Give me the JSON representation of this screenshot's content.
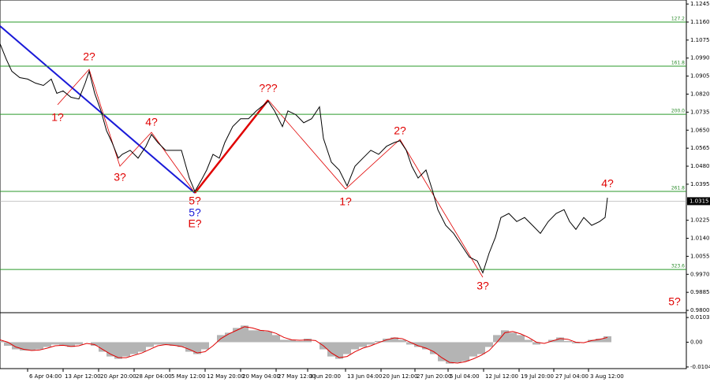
{
  "chart_data": [
    {
      "type": "line",
      "color": "#000000",
      "x": [
        0,
        8,
        15,
        25,
        35,
        45,
        55,
        65,
        72,
        80,
        90,
        100,
        108,
        113,
        120,
        128,
        135,
        142,
        150,
        155,
        165,
        175,
        185,
        192,
        200,
        210,
        220,
        230,
        240,
        247,
        255,
        262,
        270,
        278,
        285,
        295,
        305,
        315,
        325,
        340,
        348,
        358,
        365,
        375,
        385,
        395,
        405,
        410,
        420,
        430,
        440,
        450,
        460,
        470,
        480,
        490,
        500,
        507,
        515,
        522,
        530,
        540,
        548,
        555,
        565,
        575,
        585,
        595,
        605,
        612,
        620,
        628,
        635,
        645,
        655,
        665,
        675,
        685,
        695,
        705,
        715,
        722,
        730,
        740,
        750,
        760,
        767,
        770
      ],
      "values": [
        1.1058,
        1.0984,
        1.0928,
        1.0898,
        1.0891,
        1.0872,
        1.0861,
        1.0891,
        1.0824,
        1.0835,
        1.0805,
        1.0797,
        1.0872,
        1.0928,
        1.0824,
        1.0741,
        1.0648,
        1.0592,
        1.0518,
        1.0536,
        1.0555,
        1.0518,
        1.0574,
        1.063,
        1.0592,
        1.0555,
        1.0555,
        1.0555,
        1.0424,
        1.0361,
        1.0413,
        1.0462,
        1.0536,
        1.0518,
        1.0592,
        1.0667,
        1.0704,
        1.0704,
        1.0741,
        1.0786,
        1.0741,
        1.0667,
        1.0741,
        1.0723,
        1.0685,
        1.0704,
        1.076,
        1.0611,
        1.0499,
        1.0462,
        1.0387,
        1.048,
        1.0518,
        1.0555,
        1.0536,
        1.0574,
        1.0592,
        1.06,
        1.0555,
        1.048,
        1.0424,
        1.0462,
        1.0368,
        1.0275,
        1.0201,
        1.0163,
        1.0107,
        1.0051,
        1.0033,
        0.9977,
        1.007,
        1.0145,
        1.0238,
        1.0257,
        1.0219,
        1.0238,
        1.0201,
        1.0163,
        1.0219,
        1.0257,
        1.0275,
        1.0219,
        1.0182,
        1.0238,
        1.0201,
        1.0219,
        1.0238,
        1.0331
      ],
      "xlim": [
        0,
        870
      ],
      "ylim": [
        0.9789,
        1.1264
      ],
      "yticks": [
        1.1245,
        {
          "value": 1.116,
          "label": "1.1160"
        },
        1.1075,
        {
          "value": 1.099,
          "label": "1.0990"
        },
        1.0905,
        {
          "value": 1.082,
          "label": "1.0820"
        },
        1.0735,
        {
          "value": 1.065,
          "label": "1.0650"
        },
        1.0565,
        {
          "value": 1.048,
          "label": "1.0480"
        },
        1.0395,
        1.0225,
        {
          "value": 1.014,
          "label": "1.0140"
        },
        1.0055,
        {
          "value": 0.997,
          "label": "0.9970"
        },
        0.9885,
        {
          "value": 0.98,
          "label": "0.9800"
        }
      ],
      "current_price": 1.0315,
      "levels": [
        {
          "price": 1.116,
          "label": "127.2"
        },
        {
          "price": 1.0952,
          "label": "161.8"
        },
        {
          "price": 1.0725,
          "label": "200.0"
        },
        {
          "price": 1.0361,
          "label": "261.8"
        },
        {
          "price": 0.9993,
          "label": "323.6"
        }
      ],
      "level_color": "#2a9a2a",
      "annotations": [
        "2?",
        "1?",
        "4?",
        "3?",
        "5?",
        "5?",
        "E?",
        "???",
        "1?",
        "2?",
        "3?",
        "4?",
        "5?"
      ]
    },
    {
      "type": "bar",
      "color": "#b4b4b4",
      "signal_color": "#e00000",
      "x": [
        0,
        10,
        20,
        30,
        40,
        50,
        60,
        70,
        80,
        90,
        100,
        110,
        120,
        130,
        140,
        150,
        160,
        170,
        180,
        190,
        200,
        210,
        220,
        230,
        240,
        250,
        260,
        270,
        280,
        290,
        300,
        310,
        320,
        330,
        340,
        350,
        360,
        370,
        380,
        390,
        400,
        410,
        420,
        430,
        440,
        450,
        460,
        470,
        480,
        490,
        500,
        510,
        520,
        530,
        540,
        550,
        560,
        570,
        580,
        590,
        600,
        610,
        620,
        630,
        640,
        650,
        660,
        670,
        680,
        690,
        700,
        710,
        720,
        730,
        740,
        750,
        760,
        770
      ],
      "values": [
        0.0005,
        -0.0015,
        -0.003,
        -0.0035,
        -0.0035,
        -0.003,
        -0.002,
        -0.001,
        -0.0015,
        -0.002,
        -0.001,
        0,
        -0.0015,
        -0.004,
        -0.006,
        -0.007,
        -0.006,
        -0.005,
        -0.004,
        -0.002,
        -0.001,
        -0.001,
        -0.0015,
        -0.002,
        -0.004,
        -0.005,
        -0.003,
        0,
        0.003,
        0.004,
        0.006,
        0.007,
        0.005,
        0.005,
        0.0045,
        0.003,
        0.001,
        0.001,
        0.0005,
        0.0015,
        0,
        -0.003,
        -0.006,
        -0.007,
        -0.005,
        -0.003,
        -0.002,
        -0.001,
        0.0005,
        0.0015,
        0.002,
        0.001,
        -0.001,
        -0.002,
        -0.003,
        -0.005,
        -0.008,
        -0.009,
        -0.0085,
        -0.008,
        -0.006,
        -0.005,
        -0.002,
        0.003,
        0.005,
        0.004,
        0.003,
        0.001,
        -0.001,
        0,
        0.001,
        0.002,
        0.0005,
        -0.0005,
        0,
        0.001,
        0.0015,
        0.0025
      ],
      "signal": [
        0.001,
        0,
        -0.002,
        -0.003,
        -0.0035,
        -0.0033,
        -0.0025,
        -0.0015,
        -0.0013,
        -0.0018,
        -0.0015,
        -0.0005,
        -0.001,
        -0.003,
        -0.005,
        -0.0065,
        -0.0065,
        -0.0055,
        -0.0045,
        -0.003,
        -0.0015,
        -0.001,
        -0.0013,
        -0.0018,
        -0.003,
        -0.0045,
        -0.004,
        -0.0015,
        0.0015,
        0.0035,
        0.005,
        0.0065,
        0.006,
        0.005,
        0.0047,
        0.0037,
        0.002,
        0.001,
        0.0008,
        0.001,
        0.0007,
        -0.0015,
        -0.0045,
        -0.0065,
        -0.006,
        -0.004,
        -0.0025,
        -0.0015,
        -0.0002,
        0.001,
        0.0018,
        0.0015,
        0,
        -0.0015,
        -0.0025,
        -0.004,
        -0.0065,
        -0.0085,
        -0.0088,
        -0.0082,
        -0.007,
        -0.0055,
        -0.0035,
        0,
        0.004,
        0.0045,
        0.0035,
        0.002,
        0,
        -0.0005,
        0.0005,
        0.0015,
        0.0012,
        0,
        -0.0002,
        0.0007,
        0.0012,
        0.002
      ],
      "xlim": [
        0,
        870
      ],
      "ylim": [
        -0.0111,
        0.0124
      ],
      "yticks": [
        0.01037,
        {
          "value": 0,
          "label": "0.00"
        },
        -0.01041
      ],
      "xticks": [
        {
          "value": 35,
          "label": "6 Apr 04:00"
        },
        {
          "value": 80,
          "label": "13 Apr 12:00"
        },
        {
          "value": 125,
          "label": "20 Apr 20:00"
        },
        {
          "value": 170,
          "label": "28 Apr 04:00"
        },
        {
          "value": 215,
          "label": "5 May 12:00"
        },
        {
          "value": 260,
          "label": "12 May 20:00"
        },
        {
          "value": 305,
          "label": "20 May 04:00"
        },
        {
          "value": 350,
          "label": "27 May 12:00"
        },
        {
          "value": 390,
          "label": "3 Jun 20:00"
        },
        {
          "value": 438,
          "label": "13 Jun 04:00"
        },
        {
          "value": 483,
          "label": "20 Jun 12:00"
        },
        {
          "value": 526,
          "label": "27 Jun 20:00"
        },
        {
          "value": 568,
          "label": "5 Jul 04:00"
        },
        {
          "value": 613,
          "label": "12 Jul 12:00"
        },
        {
          "value": 658,
          "label": "19 Jul 20:00"
        },
        {
          "value": 702,
          "label": "27 Jul 04:00"
        },
        {
          "value": 746,
          "label": "3 Aug 12:00"
        }
      ]
    }
  ]
}
